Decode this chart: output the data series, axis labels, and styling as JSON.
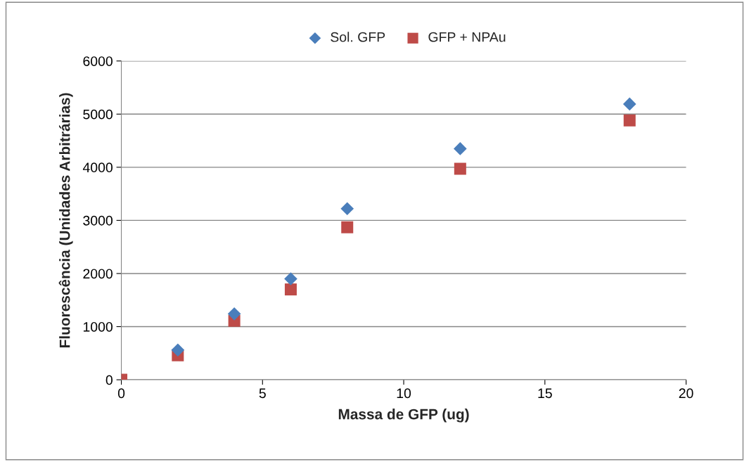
{
  "chart_data": {
    "type": "scatter",
    "xlabel": "Massa de GFP (ug)",
    "ylabel": "Fluorescência (Unidades Arbitrárias)",
    "x": [
      0,
      2,
      4,
      6,
      8,
      12,
      18
    ],
    "series": [
      {
        "name": "Sol. GFP",
        "color": "#4a7ebb",
        "marker": "diamond",
        "values": [
          null,
          560,
          1240,
          1900,
          3220,
          4350,
          5190
        ]
      },
      {
        "name": "GFP + NPAu",
        "color": "#be4b48",
        "marker": "square",
        "values": [
          0,
          460,
          1110,
          1700,
          2870,
          3970,
          4880
        ]
      }
    ],
    "xlim": [
      0,
      20
    ],
    "xticks": [
      0,
      5,
      10,
      15,
      20
    ],
    "ylim": [
      0,
      6000
    ],
    "yticks": [
      0,
      1000,
      2000,
      3000,
      4000,
      5000,
      6000
    ],
    "grid": "y",
    "legend": "top"
  }
}
